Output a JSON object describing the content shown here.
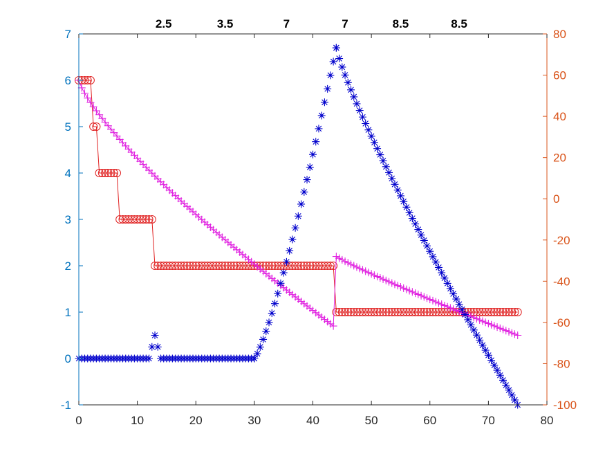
{
  "chart_data": {
    "type": "scatter",
    "title": "",
    "xlabel": "",
    "ylabel": "",
    "y2label": "",
    "xlim": [
      0,
      80
    ],
    "ylim": [
      -1,
      7
    ],
    "y2lim": [
      -100,
      80
    ],
    "grid": false,
    "x_ticks": [
      "0",
      "10",
      "20",
      "30",
      "40",
      "50",
      "60",
      "70",
      "80"
    ],
    "y_ticks": [
      "-1",
      "0",
      "1",
      "2",
      "3",
      "4",
      "5",
      "6",
      "7"
    ],
    "y2_ticks": [
      "-100",
      "-80",
      "-60",
      "-40",
      "-20",
      "0",
      "20",
      "40",
      "60",
      "80"
    ],
    "top_labels": [
      {
        "x": 14.5,
        "text": "2.5"
      },
      {
        "x": 25,
        "text": "3.5"
      },
      {
        "x": 35.5,
        "text": "7"
      },
      {
        "x": 45.5,
        "text": "7"
      },
      {
        "x": 55,
        "text": "8.5"
      },
      {
        "x": 65,
        "text": "8.5"
      }
    ],
    "colors": {
      "left_axis": "#0072BD",
      "right_axis": "#D95319",
      "asterisk_series": "#0000CC",
      "plus_series": "#E020E0",
      "circle_series": "#E02020"
    },
    "series": [
      {
        "marker": "asterisk",
        "axis": "left",
        "step": 0.5,
        "segments": [
          {
            "x_start": 0,
            "x_end": 12,
            "type": "constant",
            "y": 0
          },
          {
            "points": [
              [
                12.5,
                0.25
              ],
              [
                13,
                0.5
              ],
              [
                13.5,
                0.25
              ]
            ]
          },
          {
            "x_start": 14,
            "x_end": 30,
            "type": "constant",
            "y": 0
          },
          {
            "x_start": 30,
            "x_end": 44,
            "type": "curve",
            "y_start": 0,
            "y_end": 6.7,
            "exponent": 1.25
          },
          {
            "x_start": 44,
            "x_end": 75,
            "type": "curve",
            "y_start": 6.7,
            "y_end": -1,
            "exponent": 0.85
          }
        ]
      },
      {
        "marker": "plus",
        "axis": "left",
        "step": 0.5,
        "segments": [
          {
            "x_start": 0,
            "x_end": 43.5,
            "type": "curve",
            "y_start": 6,
            "y_end": 0.7,
            "exponent": 0.78
          },
          {
            "x_start": 44,
            "x_end": 75,
            "type": "curve",
            "y_start": 2.2,
            "y_end": 0.5,
            "exponent": 0.92
          }
        ]
      },
      {
        "marker": "circle",
        "axis": "left",
        "step": 0.5,
        "segments": [
          {
            "x_start": 0,
            "x_end": 2,
            "type": "constant",
            "y": 6
          },
          {
            "x_start": 2.5,
            "x_end": 3,
            "type": "constant",
            "y": 5
          },
          {
            "x_start": 3.5,
            "x_end": 6.5,
            "type": "constant",
            "y": 4
          },
          {
            "x_start": 7,
            "x_end": 12.5,
            "type": "constant",
            "y": 3
          },
          {
            "x_start": 13,
            "x_end": 43.5,
            "type": "constant",
            "y": 2
          },
          {
            "x_start": 44,
            "x_end": 75,
            "type": "constant",
            "y": 1
          }
        ]
      }
    ]
  }
}
